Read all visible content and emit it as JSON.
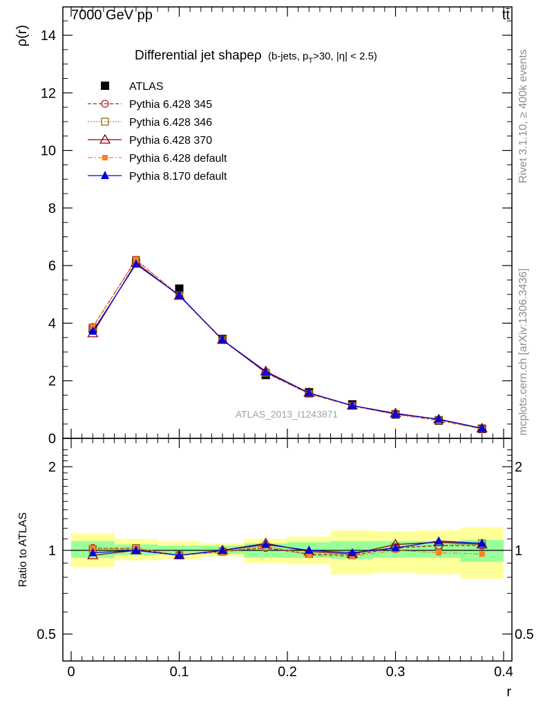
{
  "header": {
    "left": "7000 GeV pp",
    "right": "tt̄"
  },
  "side_texts": {
    "top": "Rivet 3.1.10, ≥ 400k events",
    "bottom": "mcplots.cern.ch [arXiv:1306.3436]"
  },
  "watermark": "ATLAS_2013_I1243871",
  "chart_data": [
    {
      "type": "line",
      "title": "Differential jet shape ρ (b-jets, p_T>30, |η| < 2.5)",
      "title_parts": {
        "main": "Differential jet shapeρ",
        "paren": "(b-jets, p",
        "sub": "T",
        "rest": ">30, |η| < 2.5)"
      },
      "ylabel": "ρ(r)",
      "xlabel": "",
      "xlim": [
        0,
        0.4
      ],
      "ylim": [
        0,
        14.5
      ],
      "yticks": [
        0,
        2,
        4,
        6,
        8,
        10,
        12,
        14
      ],
      "grid": false,
      "legend_position": "top-left",
      "x": [
        0.02,
        0.06,
        0.1,
        0.14,
        0.18,
        0.22,
        0.26,
        0.3,
        0.34,
        0.38
      ],
      "series": [
        {
          "name": "ATLAS",
          "color": "#000000",
          "marker": "square-filled",
          "line": "none",
          "values": [
            3.8,
            6.1,
            5.2,
            3.45,
            2.2,
            1.6,
            1.18,
            0.83,
            0.62,
            0.33
          ]
        },
        {
          "name": "Pythia 6.428 345",
          "color": "#b2182b",
          "marker": "circle-open",
          "line": "dashed",
          "values": [
            3.87,
            6.2,
            4.95,
            3.43,
            2.27,
            1.55,
            1.13,
            0.85,
            0.64,
            0.34
          ]
        },
        {
          "name": "Pythia 6.428 346",
          "color": "#8b6914",
          "marker": "square-open",
          "line": "dotted",
          "values": [
            3.85,
            6.2,
            4.97,
            3.42,
            2.28,
            1.55,
            1.13,
            0.85,
            0.64,
            0.35
          ]
        },
        {
          "name": "Pythia 6.428 370",
          "color": "#8b0000",
          "marker": "triangle-open",
          "line": "solid",
          "values": [
            3.65,
            6.1,
            4.95,
            3.42,
            2.33,
            1.58,
            1.14,
            0.87,
            0.66,
            0.345
          ]
        },
        {
          "name": "Pythia 6.428 default",
          "color": "#ff7f27",
          "marker": "square-filled-small",
          "line": "dashdot",
          "values": [
            3.87,
            6.2,
            4.96,
            3.4,
            2.28,
            1.55,
            1.12,
            0.83,
            0.61,
            0.32
          ]
        },
        {
          "name": "Pythia 8.170 default",
          "color": "#0000e0",
          "marker": "triangle-filled",
          "line": "solid",
          "values": [
            3.72,
            6.05,
            4.97,
            3.42,
            2.3,
            1.58,
            1.14,
            0.85,
            0.67,
            0.35
          ]
        }
      ]
    },
    {
      "type": "line",
      "ylabel": "Ratio to ATLAS",
      "xlabel": "r",
      "xlim": [
        0,
        0.4
      ],
      "ylim": [
        0.4,
        2.4
      ],
      "yscale": "log",
      "yticks": [
        0.5,
        1,
        2
      ],
      "xticks": [
        0,
        0.1,
        0.2,
        0.3,
        0.4
      ],
      "band_inner": [
        [
          0.94,
          1.08
        ],
        [
          0.96,
          1.05
        ],
        [
          0.97,
          1.04
        ],
        [
          0.97,
          1.04
        ],
        [
          0.94,
          1.06
        ],
        [
          0.94,
          1.07
        ],
        [
          0.93,
          1.08
        ],
        [
          0.94,
          1.08
        ],
        [
          0.94,
          1.08
        ],
        [
          0.91,
          1.09
        ]
      ],
      "band_outer": [
        [
          0.87,
          1.15
        ],
        [
          0.92,
          1.1
        ],
        [
          0.93,
          1.08
        ],
        [
          0.95,
          1.06
        ],
        [
          0.9,
          1.1
        ],
        [
          0.89,
          1.12
        ],
        [
          0.82,
          1.18
        ],
        [
          0.83,
          1.17
        ],
        [
          0.82,
          1.18
        ],
        [
          0.79,
          1.21
        ]
      ],
      "series": [
        {
          "name": "Pythia 6.428 345",
          "color": "#b2182b",
          "marker": "circle-open",
          "line": "dashed",
          "values": [
            1.02,
            1.01,
            0.96,
            0.99,
            1.02,
            0.97,
            0.96,
            1.02,
            1.04,
            1.04
          ]
        },
        {
          "name": "Pythia 6.428 346",
          "color": "#8b6914",
          "marker": "square-open",
          "line": "dotted",
          "values": [
            1.01,
            1.02,
            0.96,
            0.99,
            1.03,
            0.97,
            0.96,
            1.03,
            1.04,
            1.06
          ]
        },
        {
          "name": "Pythia 6.428 370",
          "color": "#8b0000",
          "marker": "triangle-open",
          "line": "solid",
          "values": [
            0.96,
            1.0,
            0.96,
            1.0,
            1.06,
            0.99,
            0.97,
            1.05,
            1.07,
            1.05
          ]
        },
        {
          "name": "Pythia 6.428 default",
          "color": "#ff7f27",
          "marker": "square-filled-small",
          "line": "dashdot",
          "values": [
            1.02,
            1.02,
            0.96,
            0.99,
            1.04,
            0.96,
            0.95,
            1.0,
            0.98,
            0.97
          ]
        },
        {
          "name": "Pythia 8.170 default",
          "color": "#0000e0",
          "marker": "triangle-filled",
          "line": "solid",
          "values": [
            0.98,
            1.0,
            0.96,
            1.0,
            1.05,
            1.0,
            0.98,
            1.02,
            1.08,
            1.06
          ]
        }
      ]
    }
  ]
}
